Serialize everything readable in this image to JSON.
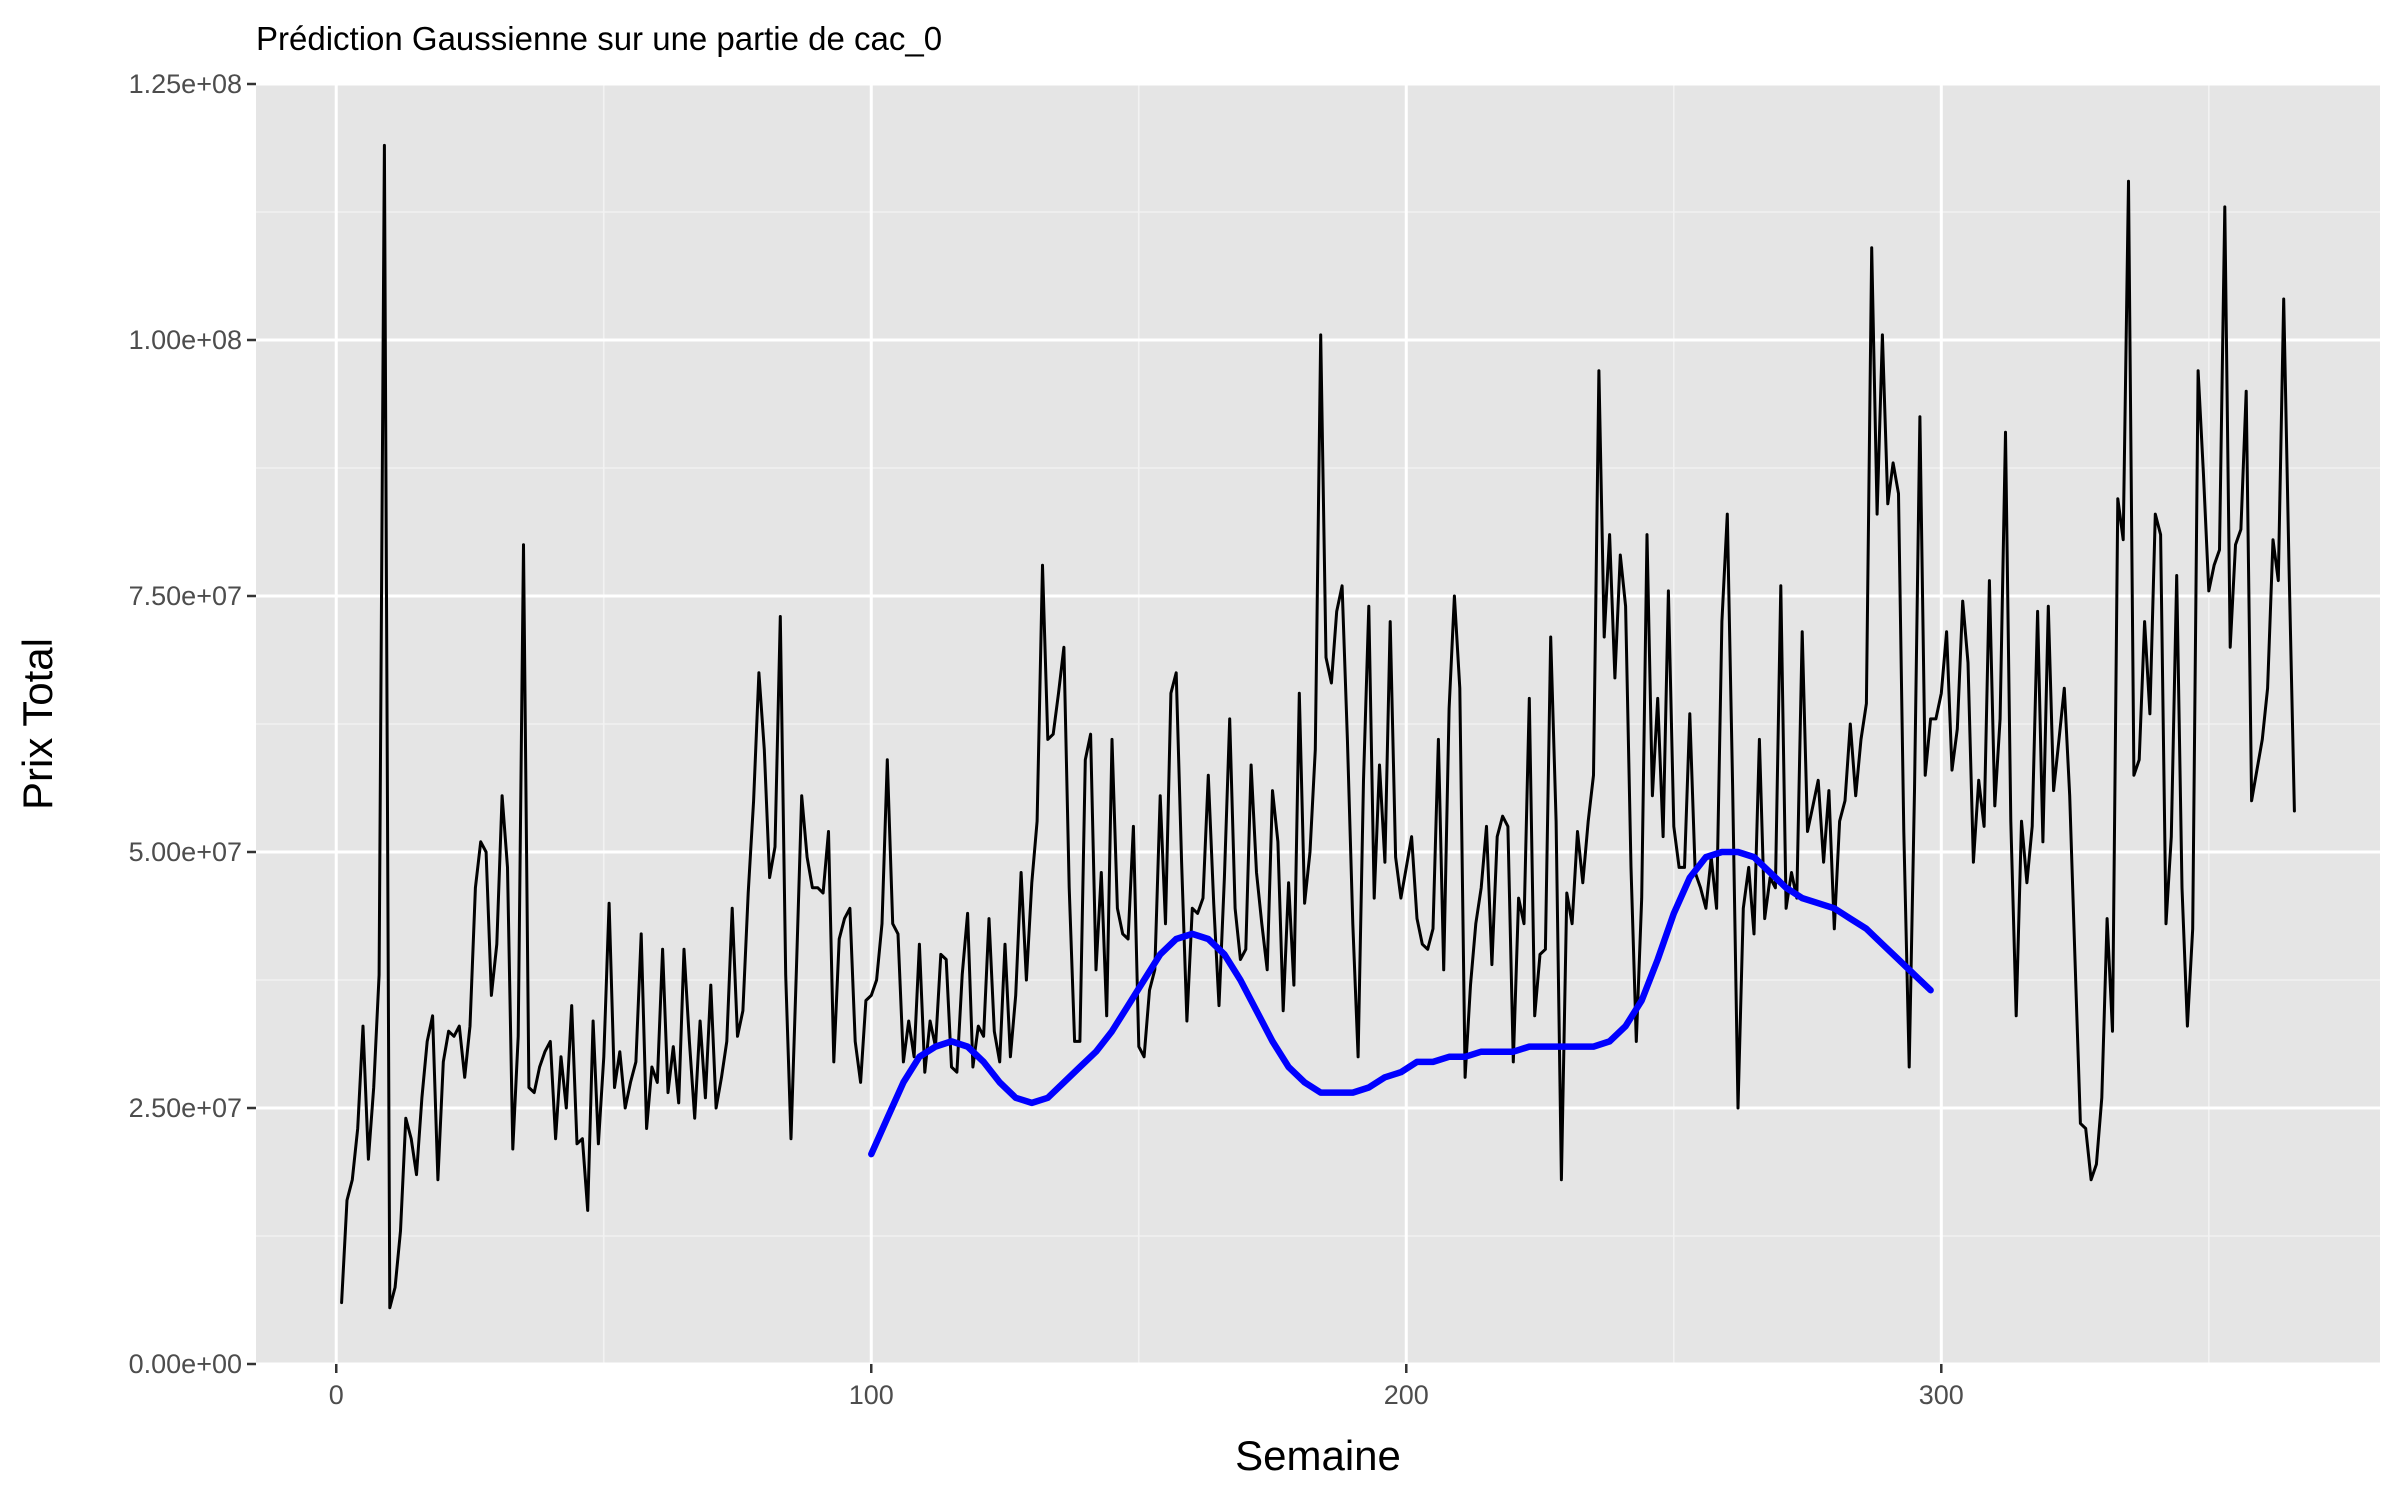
{
  "chart_data": {
    "type": "line",
    "title": "Prédiction Gaussienne sur une partie de cac_0",
    "xlabel": "Semaine",
    "ylabel": "Prix Total",
    "xlim": [
      -15,
      382
    ],
    "ylim": [
      0,
      125000000
    ],
    "x_ticks": [
      0,
      100,
      200,
      300
    ],
    "x_tick_labels": [
      "0",
      "100",
      "200",
      "300"
    ],
    "y_ticks": [
      0,
      25000000,
      50000000,
      75000000,
      100000000,
      125000000
    ],
    "y_tick_labels": [
      "0.00e+00",
      "2.50e+07",
      "5.00e+07",
      "7.50e+07",
      "1.00e+08",
      "1.25e+08"
    ],
    "grid": true,
    "panel_background": "#e5e5e5",
    "series": [
      {
        "color": "#000000",
        "x_start": 1,
        "x_step": 1,
        "values": [
          6000000,
          16000000,
          18000000,
          23000000,
          33000000,
          20000000,
          27000000,
          38000000,
          119000000,
          5500000,
          7500000,
          13000000,
          24000000,
          22000000,
          18500000,
          26000000,
          31500000,
          34000000,
          18000000,
          29500000,
          32500000,
          32000000,
          33000000,
          28000000,
          33000000,
          46500000,
          51000000,
          50000000,
          36000000,
          41000000,
          55500000,
          48500000,
          21000000,
          32000000,
          80000000,
          27000000,
          26500000,
          29000000,
          30500000,
          31500000,
          22000000,
          30000000,
          25000000,
          35000000,
          21500000,
          22000000,
          15000000,
          33500000,
          21500000,
          30000000,
          45000000,
          27000000,
          30500000,
          25000000,
          27500000,
          29500000,
          42000000,
          23000000,
          29000000,
          27500000,
          40500000,
          26500000,
          31000000,
          25500000,
          40500000,
          31500000,
          24000000,
          33500000,
          26000000,
          37000000,
          25000000,
          28000000,
          31500000,
          44500000,
          32000000,
          34500000,
          46000000,
          55000000,
          67500000,
          60000000,
          47500000,
          50500000,
          73000000,
          38000000,
          22000000,
          38500000,
          55500000,
          49500000,
          46500000,
          46500000,
          46000000,
          52000000,
          29500000,
          41500000,
          43500000,
          44500000,
          31500000,
          27500000,
          35500000,
          36000000,
          37500000,
          43000000,
          59000000,
          43000000,
          42000000,
          29500000,
          33500000,
          30000000,
          41000000,
          28500000,
          33500000,
          31000000,
          40000000,
          39500000,
          29000000,
          28500000,
          38000000,
          44000000,
          29000000,
          33000000,
          32000000,
          43500000,
          32500000,
          29500000,
          41000000,
          30000000,
          36000000,
          48000000,
          37500000,
          47000000,
          53000000,
          78000000,
          61000000,
          61500000,
          65500000,
          70000000,
          46500000,
          31500000,
          31500000,
          59000000,
          61500000,
          38500000,
          48000000,
          34000000,
          61000000,
          44500000,
          42000000,
          41500000,
          52500000,
          31000000,
          30000000,
          36500000,
          38500000,
          55500000,
          43000000,
          65500000,
          67500000,
          49000000,
          33500000,
          44500000,
          44000000,
          45500000,
          57500000,
          45000000,
          35000000,
          47500000,
          63000000,
          44500000,
          39500000,
          40500000,
          58500000,
          48000000,
          43000000,
          38500000,
          56000000,
          51000000,
          34500000,
          47000000,
          37000000,
          65500000,
          45000000,
          50000000,
          60000000,
          100500000,
          69000000,
          66500000,
          73500000,
          76000000,
          61000000,
          43000000,
          30000000,
          57000000,
          74000000,
          45500000,
          58500000,
          49000000,
          72500000,
          49500000,
          45500000,
          48500000,
          51500000,
          43500000,
          41000000,
          40500000,
          42500000,
          61000000,
          38500000,
          64000000,
          75000000,
          66000000,
          28000000,
          37000000,
          43000000,
          46500000,
          52500000,
          39000000,
          51500000,
          53500000,
          52500000,
          29500000,
          45500000,
          43000000,
          65000000,
          34000000,
          40000000,
          40500000,
          71000000,
          53000000,
          18000000,
          46000000,
          43000000,
          52000000,
          47000000,
          53000000,
          57500000,
          97000000,
          71000000,
          81000000,
          67000000,
          79000000,
          74000000,
          48500000,
          31500000,
          45500000,
          81000000,
          55500000,
          65000000,
          51500000,
          75500000,
          52500000,
          48500000,
          48500000,
          63500000,
          48000000,
          46500000,
          44500000,
          49500000,
          44500000,
          72500000,
          83000000,
          56500000,
          25000000,
          44500000,
          48500000,
          42000000,
          61000000,
          43500000,
          47500000,
          46500000,
          76000000,
          44500000,
          48000000,
          45500000,
          71500000,
          52000000,
          54500000,
          57000000,
          49000000,
          56000000,
          42500000,
          53000000,
          55000000,
          62500000,
          55500000,
          61000000,
          64500000,
          109000000,
          83000000,
          100500000,
          84000000,
          88000000,
          85000000,
          52000000,
          29000000,
          56000000,
          92500000,
          57500000,
          63000000,
          63000000,
          65500000,
          71500000,
          58000000,
          62000000,
          74500000,
          68500000,
          49000000,
          57000000,
          52500000,
          76500000,
          54500000,
          63000000,
          91000000,
          53000000,
          34000000,
          53000000,
          47000000,
          52500000,
          73500000,
          51000000,
          74000000,
          56000000,
          61000000,
          66000000,
          55500000,
          39500000,
          23500000,
          23000000,
          18000000,
          19500000,
          26000000,
          43500000,
          32500000,
          84500000,
          80500000,
          115500000,
          57500000,
          59000000,
          72500000,
          63500000,
          83000000,
          81000000,
          43000000,
          51500000,
          77000000,
          46500000,
          33000000,
          42500000,
          97000000,
          87000000,
          75500000,
          78000000,
          79500000,
          113000000,
          70000000,
          80000000,
          81500000,
          95000000,
          55000000,
          58000000,
          61000000,
          66000000,
          80500000,
          76500000,
          104000000,
          78000000,
          54000000
        ]
      },
      {
        "color": "#0000ff",
        "x": [
          100,
          103,
          106,
          109,
          112,
          115,
          118,
          121,
          124,
          127,
          130,
          133,
          136,
          139,
          142,
          145,
          148,
          151,
          154,
          157,
          160,
          163,
          166,
          169,
          172,
          175,
          178,
          181,
          184,
          187,
          190,
          193,
          196,
          199,
          202,
          205,
          208,
          211,
          214,
          217,
          220,
          223,
          226,
          229,
          232,
          235,
          238,
          241,
          244,
          247,
          250,
          253,
          256,
          259,
          262,
          265,
          268,
          271,
          274,
          277,
          280,
          283,
          286,
          289,
          292,
          295,
          298
        ],
        "values": [
          20500000,
          24000000,
          27500000,
          30000000,
          31000000,
          31500000,
          31000000,
          29500000,
          27500000,
          26000000,
          25500000,
          26000000,
          27500000,
          29000000,
          30500000,
          32500000,
          35000000,
          37500000,
          40000000,
          41500000,
          42000000,
          41500000,
          40000000,
          37500000,
          34500000,
          31500000,
          29000000,
          27500000,
          26500000,
          26500000,
          26500000,
          27000000,
          28000000,
          28500000,
          29500000,
          29500000,
          30000000,
          30000000,
          30500000,
          30500000,
          30500000,
          31000000,
          31000000,
          31000000,
          31000000,
          31000000,
          31500000,
          33000000,
          35500000,
          39500000,
          44000000,
          47500000,
          49500000,
          50000000,
          50000000,
          49500000,
          48000000,
          46500000,
          45500000,
          45000000,
          44500000,
          43500000,
          42500000,
          41000000,
          39500000,
          38000000,
          36500000
        ]
      }
    ]
  }
}
